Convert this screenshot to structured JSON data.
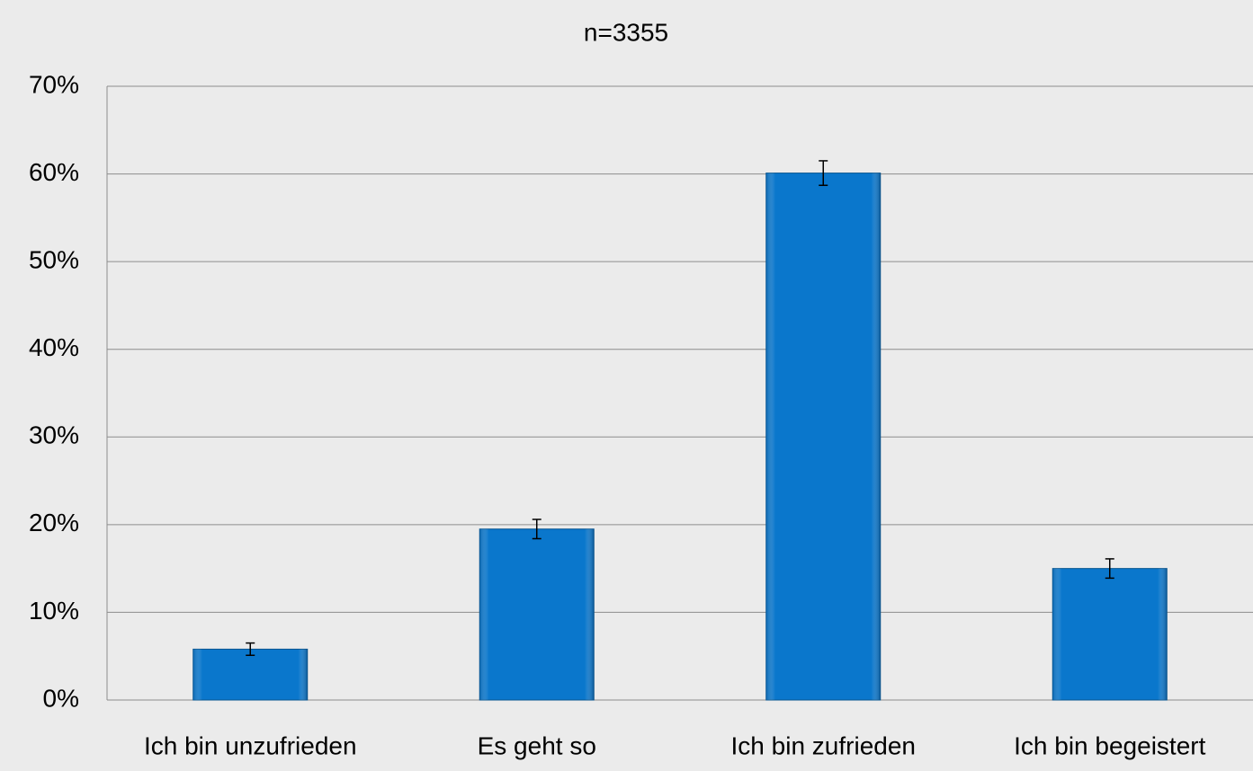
{
  "chart_data": {
    "type": "bar",
    "title": "n=3355",
    "categories": [
      "Ich bin unzufrieden",
      "Es geht so",
      "Ich bin zufrieden",
      "Ich bin begeistert"
    ],
    "values": [
      5.8,
      19.5,
      60.1,
      15.0
    ],
    "errors": [
      0.7,
      1.1,
      1.4,
      1.1
    ],
    "color": "#0a77cc",
    "ylim": [
      0,
      70
    ],
    "yticks": [
      {
        "value": 0,
        "label": "0%"
      },
      {
        "value": 10,
        "label": "10%"
      },
      {
        "value": 20,
        "label": "20%"
      },
      {
        "value": 30,
        "label": "30%"
      },
      {
        "value": 40,
        "label": "40%"
      },
      {
        "value": 50,
        "label": "50%"
      },
      {
        "value": 60,
        "label": "60%"
      },
      {
        "value": 70,
        "label": "70%"
      }
    ],
    "grid": true
  }
}
